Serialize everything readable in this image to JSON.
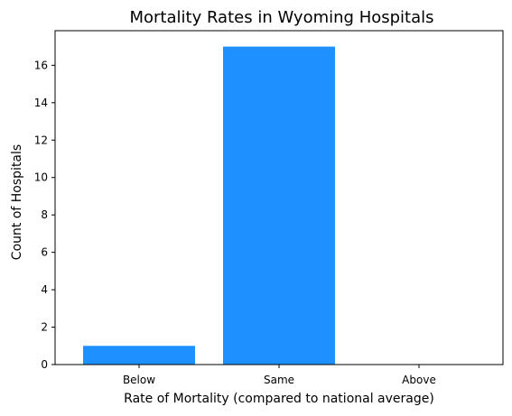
{
  "chart_data": {
    "type": "bar",
    "title": "Mortality Rates in Wyoming Hospitals",
    "xlabel": "Rate of Mortality (compared to national average)",
    "ylabel": "Count of Hospitals",
    "categories": [
      "Below",
      "Same",
      "Above"
    ],
    "values": [
      1,
      17,
      0
    ],
    "yticks": [
      0,
      2,
      4,
      6,
      8,
      10,
      12,
      14,
      16
    ],
    "ylim": [
      0,
      17.85
    ],
    "grid": false,
    "bar_color": "#1e90ff"
  }
}
